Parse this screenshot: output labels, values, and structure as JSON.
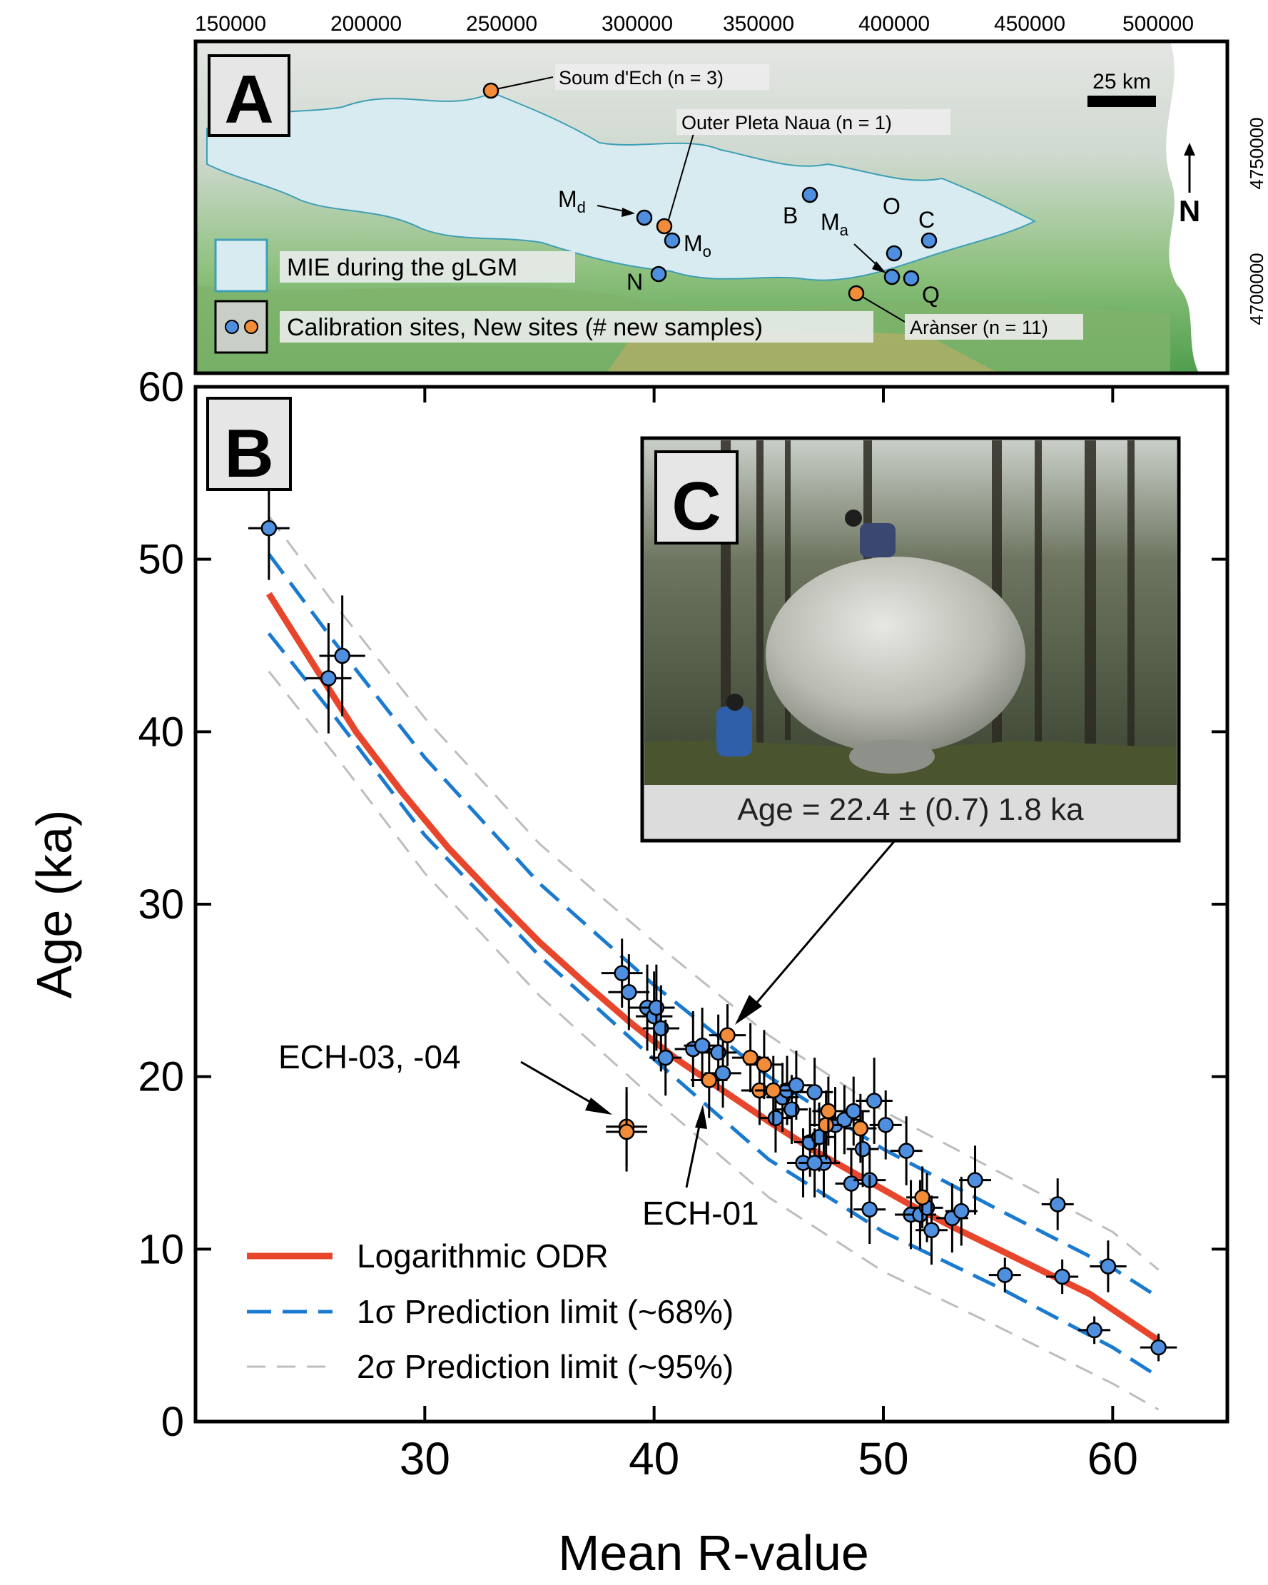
{
  "colors": {
    "fit_line": "#e8462c",
    "pi1_line": "#1a7ad0",
    "pi2_line": "#bdbdbd",
    "calibration_point": "#4f8fe0",
    "new_point": "#f28c38",
    "ice_extent": "#d7ebf0",
    "terrain_low": "#4f9e4d",
    "terrain_high": "#c9ad66"
  },
  "panel_a": {
    "label": "A",
    "x_ticks": [
      "150000",
      "200000",
      "250000",
      "300000",
      "350000",
      "400000",
      "450000",
      "500000"
    ],
    "y_ticks": [
      "4750000",
      "4700000"
    ],
    "scale_bar_label": "25 km",
    "north_label": "N",
    "legend": {
      "ice": "MIE during the gLGM",
      "sites": "Calibration sites, New sites (# new samples)"
    },
    "sites": {
      "soum": "Soum d'Ech (n = 3)",
      "pleta": "Outer Pleta Naua (n = 1)",
      "aranser": "Arànser (n = 11)",
      "b": "B",
      "n": "N",
      "o": "O",
      "c": "C",
      "q": "Q",
      "md_main": "M",
      "md_sub": "d",
      "mo_main": "M",
      "mo_sub": "o",
      "ma_main": "M",
      "ma_sub": "a"
    }
  },
  "panel_b": {
    "label": "B",
    "annotation_ech0304": "ECH-03, -04",
    "annotation_ech01": "ECH-01"
  },
  "panel_c": {
    "label": "C",
    "caption": "Age = 22.4 ± (0.7) 1.8 ka"
  },
  "chart_data": {
    "type": "scatter",
    "xlabel": "Mean R-value",
    "ylabel": "Age (ka)",
    "xlim": [
      20,
      65
    ],
    "ylim": [
      0,
      60
    ],
    "x_ticks": [
      30,
      40,
      50,
      60
    ],
    "y_ticks": [
      0,
      10,
      20,
      30,
      40,
      50,
      60
    ],
    "grid": false,
    "legend_position": "bottom-left",
    "fit": {
      "name": "Logarithmic ODR",
      "x": [
        23.2,
        25,
        27,
        29,
        31,
        33,
        35,
        37,
        39,
        41,
        43,
        45,
        47,
        49,
        51,
        53,
        55,
        57,
        59,
        61,
        62
      ],
      "y": [
        48.0,
        44.2,
        40.0,
        36.5,
        33.3,
        30.5,
        27.8,
        25.4,
        23.1,
        21.0,
        19.2,
        17.4,
        15.7,
        14.2,
        12.7,
        11.3,
        10.0,
        8.7,
        7.4,
        5.6,
        4.7
      ]
    },
    "pi_1sigma": {
      "name": "1σ Prediction limit (~68%)",
      "upper": [
        [
          23.2,
          50.3
        ],
        [
          26,
          45.3
        ],
        [
          30,
          38.5
        ],
        [
          35,
          31.2
        ],
        [
          40,
          25.3
        ],
        [
          45,
          20.0
        ],
        [
          50,
          15.8
        ],
        [
          55,
          12.3
        ],
        [
          60,
          8.9
        ],
        [
          62,
          7.2
        ]
      ],
      "lower": [
        [
          23.2,
          45.7
        ],
        [
          26,
          41.0
        ],
        [
          30,
          34.0
        ],
        [
          35,
          27.0
        ],
        [
          40,
          21.0
        ],
        [
          45,
          15.2
        ],
        [
          50,
          11.0
        ],
        [
          55,
          7.8
        ],
        [
          60,
          4.3
        ],
        [
          62,
          2.6
        ]
      ]
    },
    "pi_2sigma": {
      "name": "2σ Prediction limit (~95%)",
      "upper": [
        [
          23.2,
          52.5
        ],
        [
          26,
          47.5
        ],
        [
          30,
          40.8
        ],
        [
          35,
          33.5
        ],
        [
          40,
          27.8
        ],
        [
          45,
          22.4
        ],
        [
          50,
          18.0
        ],
        [
          55,
          14.5
        ],
        [
          60,
          11.0
        ],
        [
          62,
          8.8
        ]
      ],
      "lower": [
        [
          23.2,
          43.5
        ],
        [
          26,
          38.8
        ],
        [
          30,
          31.8
        ],
        [
          35,
          24.7
        ],
        [
          40,
          18.7
        ],
        [
          45,
          13.0
        ],
        [
          50,
          8.7
        ],
        [
          55,
          5.5
        ],
        [
          60,
          2.2
        ],
        [
          62,
          0.7
        ]
      ]
    },
    "series": [
      {
        "name": "Calibration sites",
        "points": [
          [
            23.2,
            51.8,
            0.9,
            3.0
          ],
          [
            25.8,
            43.1,
            1.0,
            3.2
          ],
          [
            26.4,
            44.4,
            1.0,
            3.5
          ],
          [
            38.6,
            26.0,
            0.9,
            2.0
          ],
          [
            38.9,
            24.9,
            0.9,
            2.2
          ],
          [
            39.7,
            24.0,
            0.8,
            2.5
          ],
          [
            40.0,
            23.5,
            0.8,
            2.6
          ],
          [
            40.1,
            24.0,
            0.8,
            2.5
          ],
          [
            40.3,
            22.8,
            0.8,
            2.5
          ],
          [
            40.5,
            21.1,
            0.7,
            2.2
          ],
          [
            41.7,
            21.6,
            0.8,
            2.2
          ],
          [
            42.1,
            21.8,
            0.8,
            2.2
          ],
          [
            42.8,
            21.4,
            0.8,
            2.2
          ],
          [
            43.0,
            20.2,
            0.8,
            2.0
          ],
          [
            45.3,
            17.6,
            0.7,
            2.0
          ],
          [
            45.6,
            18.8,
            0.7,
            2.0
          ],
          [
            45.8,
            19.2,
            0.7,
            2.0
          ],
          [
            46.0,
            18.1,
            0.7,
            2.0
          ],
          [
            46.2,
            19.5,
            0.7,
            2.0
          ],
          [
            46.5,
            15.0,
            0.7,
            2.0
          ],
          [
            46.8,
            16.2,
            0.7,
            2.0
          ],
          [
            47.0,
            19.1,
            0.8,
            2.0
          ],
          [
            47.2,
            16.5,
            0.7,
            2.0
          ],
          [
            47.4,
            15.0,
            0.7,
            2.0
          ],
          [
            47.0,
            15.0,
            0.7,
            2.0
          ],
          [
            47.9,
            17.2,
            0.7,
            2.2
          ],
          [
            48.3,
            17.5,
            0.7,
            2.0
          ],
          [
            48.6,
            13.8,
            0.7,
            2.0
          ],
          [
            48.7,
            18.0,
            0.7,
            2.0
          ],
          [
            49.1,
            15.8,
            0.7,
            2.2
          ],
          [
            49.4,
            14.0,
            0.7,
            2.0
          ],
          [
            49.4,
            12.3,
            0.7,
            2.0
          ],
          [
            49.6,
            18.6,
            0.8,
            2.5
          ],
          [
            50.1,
            17.2,
            0.7,
            2.0
          ],
          [
            51.0,
            15.7,
            0.7,
            2.0
          ],
          [
            51.2,
            12.0,
            0.7,
            2.0
          ],
          [
            51.6,
            12.0,
            0.7,
            2.0
          ],
          [
            51.9,
            12.4,
            0.7,
            2.0
          ],
          [
            52.1,
            11.1,
            0.7,
            2.0
          ],
          [
            53.0,
            11.8,
            0.7,
            2.0
          ],
          [
            53.4,
            12.2,
            0.7,
            2.0
          ],
          [
            54.0,
            14.0,
            0.7,
            2.0
          ],
          [
            55.3,
            8.5,
            0.7,
            1.0
          ],
          [
            57.6,
            12.6,
            0.7,
            1.5
          ],
          [
            57.8,
            8.4,
            0.7,
            1.0
          ],
          [
            59.2,
            5.3,
            0.7,
            0.8
          ],
          [
            59.8,
            9.0,
            0.8,
            1.5
          ],
          [
            62.0,
            4.3,
            0.8,
            0.8
          ]
        ]
      },
      {
        "name": "New sites",
        "points": [
          [
            38.8,
            17.1,
            0.9,
            2.3
          ],
          [
            38.8,
            16.8,
            0.9,
            2.3
          ],
          [
            42.4,
            19.8,
            0.8,
            2.2
          ],
          [
            43.2,
            22.4,
            0.8,
            1.8
          ],
          [
            44.2,
            21.1,
            0.8,
            2.0
          ],
          [
            44.6,
            19.2,
            0.8,
            2.0
          ],
          [
            44.8,
            20.7,
            0.8,
            2.0
          ],
          [
            45.2,
            19.2,
            0.8,
            2.0
          ],
          [
            47.5,
            17.2,
            0.7,
            2.0
          ],
          [
            47.6,
            18.0,
            0.7,
            2.0
          ],
          [
            49.0,
            17.0,
            0.7,
            2.0
          ],
          [
            51.7,
            13.0,
            0.7,
            1.8
          ]
        ]
      }
    ]
  }
}
